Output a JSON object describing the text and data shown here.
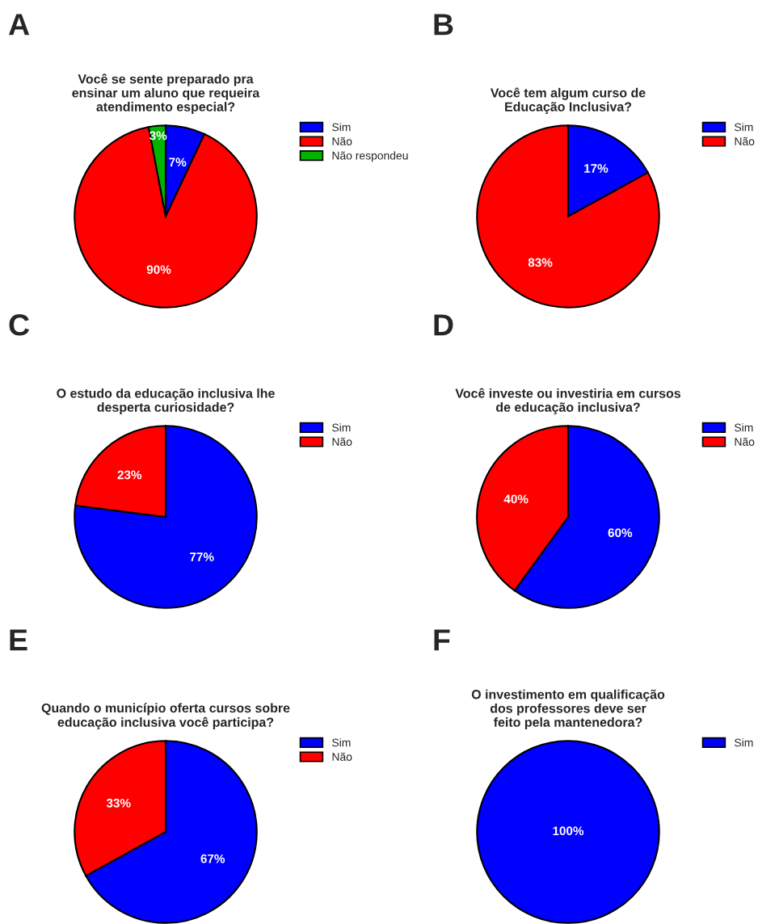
{
  "chart_data": [
    {
      "type": "pie",
      "title": "Você se sente preparado pra\nensinar um aluno que requeira\natendimento especial?",
      "annotations": [
        "A"
      ],
      "categories": [
        "Sim",
        "Não",
        "Não respondeu"
      ],
      "values": [
        7,
        90,
        3
      ],
      "colors": [
        "#0000ff",
        "#ff0000",
        "#00b400"
      ],
      "value_labels": [
        "7%",
        "90%",
        "3%"
      ],
      "legend": "top right"
    },
    {
      "type": "pie",
      "title": "Você tem algum curso de\nEducação Inclusiva?",
      "annotations": [
        "B"
      ],
      "categories": [
        "Sim",
        "Não"
      ],
      "values": [
        17,
        83
      ],
      "colors": [
        "#0000ff",
        "#ff0000"
      ],
      "value_labels": [
        "17%",
        "83%"
      ],
      "legend": "top right"
    },
    {
      "type": "pie",
      "title": "O estudo da educação inclusiva lhe\ndesperta curiosidade?",
      "annotations": [
        "C"
      ],
      "categories": [
        "Sim",
        "Não"
      ],
      "values": [
        77,
        23
      ],
      "colors": [
        "#0000ff",
        "#ff0000"
      ],
      "value_labels": [
        "77%",
        "23%"
      ],
      "legend": "top right"
    },
    {
      "type": "pie",
      "title": "Você investe ou investiria em cursos\nde educação inclusiva?",
      "annotations": [
        "D"
      ],
      "categories": [
        "Sim",
        "Não"
      ],
      "values": [
        60,
        40
      ],
      "colors": [
        "#0000ff",
        "#ff0000"
      ],
      "value_labels": [
        "60%",
        "40%"
      ],
      "legend": "top right"
    },
    {
      "type": "pie",
      "title": "Quando o município oferta cursos sobre\neducação inclusiva você participa?",
      "annotations": [
        "E"
      ],
      "categories": [
        "Sim",
        "Não"
      ],
      "values": [
        67,
        33
      ],
      "colors": [
        "#0000ff",
        "#ff0000"
      ],
      "value_labels": [
        "67%",
        "33%"
      ],
      "legend": "top right"
    },
    {
      "type": "pie",
      "title": "O investimento em qualificação\ndos professores deve ser\nfeito pela mantenedora?",
      "annotations": [
        "F"
      ],
      "categories": [
        "Sim"
      ],
      "values": [
        100
      ],
      "colors": [
        "#0000ff"
      ],
      "value_labels": [
        "100%"
      ],
      "legend": "top right"
    }
  ]
}
